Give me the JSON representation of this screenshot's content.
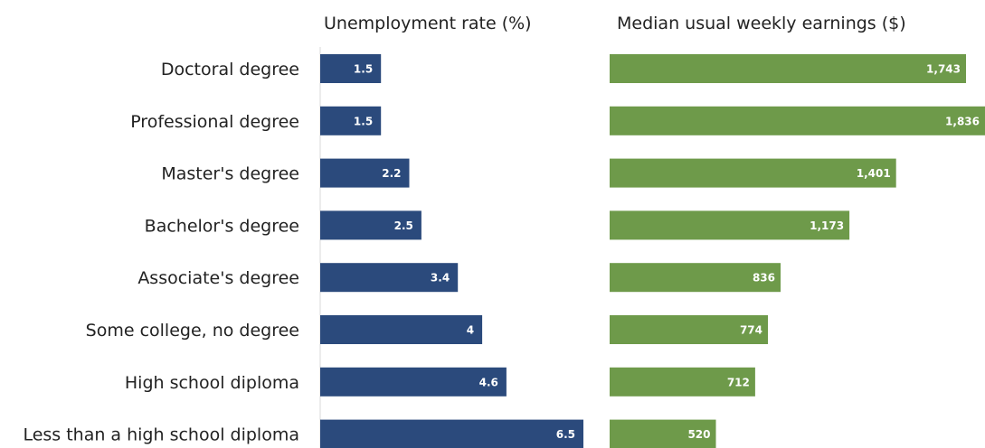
{
  "chart_data": [
    {
      "type": "bar",
      "orientation": "horizontal",
      "title": "Unemployment rate (%)",
      "categories": [
        "Doctoral degree",
        "Professional degree",
        "Master's degree",
        "Bachelor's degree",
        "Associate's degree",
        "Some college, no degree",
        "High school diploma",
        "Less than a high school diploma"
      ],
      "values": [
        1.5,
        1.5,
        2.2,
        2.5,
        3.4,
        4,
        4.6,
        6.5
      ],
      "value_labels": [
        "1.5",
        "1.5",
        "2.2",
        "2.5",
        "3.4",
        "4",
        "4.6",
        "6.5"
      ],
      "color": "#2b4a7c",
      "xlim": [
        0,
        6.5
      ]
    },
    {
      "type": "bar",
      "orientation": "horizontal",
      "title": "Median usual weekly earnings ($)",
      "categories": [
        "Doctoral degree",
        "Professional degree",
        "Master's degree",
        "Bachelor's degree",
        "Associate's degree",
        "Some college, no degree",
        "High school diploma",
        "Less than a high school diploma"
      ],
      "values": [
        1743,
        1836,
        1401,
        1173,
        836,
        774,
        712,
        520
      ],
      "value_labels": [
        "1,743",
        "1,836",
        "1,401",
        "1,173",
        "836",
        "774",
        "712",
        "520"
      ],
      "color": "#6e9a4a",
      "xlim": [
        0,
        1836
      ]
    }
  ]
}
